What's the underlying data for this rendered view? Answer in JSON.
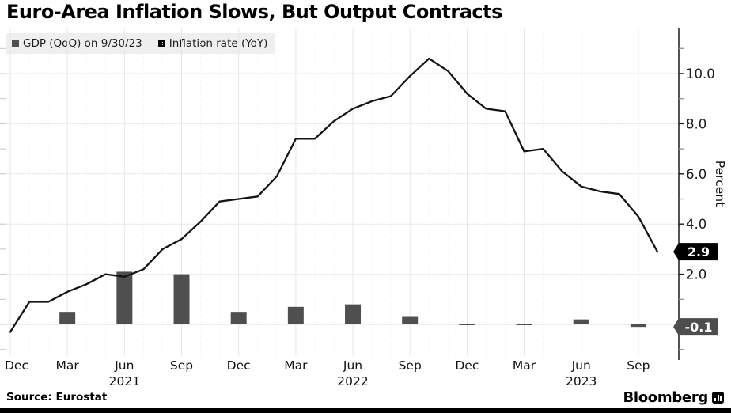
{
  "header": {
    "title": "Euro-Area Inflation Slows, But Output Contracts"
  },
  "legend": {
    "items": [
      {
        "label": "GDP (QoQ) on 9/30/23",
        "color": "#4f4f4f"
      },
      {
        "label": "Inflation rate (YoY)",
        "color": "#000000"
      }
    ]
  },
  "footer": {
    "source": "Source: Eurostat",
    "brand": "Bloomberg"
  },
  "chart_data": {
    "type": "combo",
    "title": "Euro-Area Inflation Slows, But Output Contracts",
    "xlabel": "",
    "ylabel": "Percent",
    "ylim": [
      -1.4,
      11.8
    ],
    "y_major_ticks": [
      2,
      4,
      6,
      8,
      10
    ],
    "y_major_tick_labels": [
      "2.0",
      "4.0",
      "6.0",
      "8.0",
      "10.0"
    ],
    "y_minor_tick_step": 1,
    "grid": "light horizontal lines at even values incl. zero; light vertical lines at quarters; faint dotted vertical lines at months",
    "legend_position": "top-left",
    "x_quarter_labels": [
      {
        "label": "Dec",
        "year": ""
      },
      {
        "label": "Mar",
        "year": ""
      },
      {
        "label": "Jun",
        "year": "2021"
      },
      {
        "label": "Sep",
        "year": ""
      },
      {
        "label": "Dec",
        "year": ""
      },
      {
        "label": "Mar",
        "year": ""
      },
      {
        "label": "Jun",
        "year": "2022"
      },
      {
        "label": "Sep",
        "year": ""
      },
      {
        "label": "Dec",
        "year": ""
      },
      {
        "label": "Mar",
        "year": ""
      },
      {
        "label": "Jun",
        "year": "2023"
      },
      {
        "label": "Sep",
        "year": ""
      }
    ],
    "months": [
      "Dec-20",
      "Jan-21",
      "Feb-21",
      "Mar-21",
      "Apr-21",
      "May-21",
      "Jun-21",
      "Jul-21",
      "Aug-21",
      "Sep-21",
      "Oct-21",
      "Nov-21",
      "Dec-21",
      "Jan-22",
      "Feb-22",
      "Mar-22",
      "Apr-22",
      "May-22",
      "Jun-22",
      "Jul-22",
      "Aug-22",
      "Sep-22",
      "Oct-22",
      "Nov-22",
      "Dec-22",
      "Jan-23",
      "Feb-23",
      "Mar-23",
      "Apr-23",
      "May-23",
      "Jun-23",
      "Jul-23",
      "Aug-23",
      "Sep-23",
      "Oct-23"
    ],
    "series": [
      {
        "name": "GDP (QoQ) on 9/30/23",
        "type": "bar",
        "color": "#4f4f4f",
        "x": [
          "Mar-21",
          "Jun-21",
          "Sep-21",
          "Dec-21",
          "Mar-22",
          "Jun-22",
          "Sep-22",
          "Dec-22",
          "Mar-23",
          "Jun-23",
          "Sep-23"
        ],
        "values": [
          0.5,
          2.1,
          2.0,
          0.5,
          0.7,
          0.8,
          0.3,
          0.0,
          0.0,
          0.2,
          -0.1
        ]
      },
      {
        "name": "Inflation rate (YoY)",
        "type": "line",
        "color": "#141414",
        "x": "months",
        "values": [
          -0.3,
          0.9,
          0.9,
          1.3,
          1.6,
          2.0,
          1.9,
          2.2,
          3.0,
          3.4,
          4.1,
          4.9,
          5.0,
          5.1,
          5.9,
          7.4,
          7.4,
          8.1,
          8.6,
          8.9,
          9.1,
          9.9,
          10.6,
          10.1,
          9.2,
          8.6,
          8.5,
          6.9,
          7.0,
          6.1,
          5.5,
          5.3,
          5.2,
          4.3,
          2.9
        ]
      }
    ],
    "end_labels": [
      {
        "text": "2.9",
        "value": 2.9,
        "series": "Inflation rate (YoY)",
        "bg": "#000000",
        "fg": "#ffffff"
      },
      {
        "text": "-0.1",
        "value": -0.1,
        "series": "GDP (QoQ) on 9/30/23",
        "bg": "#4d4d4d",
        "fg": "#ffffff"
      }
    ]
  }
}
